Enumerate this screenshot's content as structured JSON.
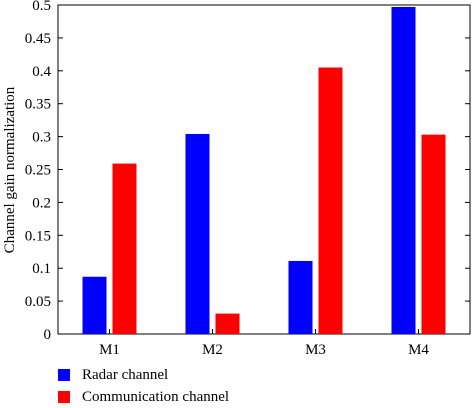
{
  "chart_data": {
    "type": "bar",
    "categories": [
      "M1",
      "M2",
      "M3",
      "M4"
    ],
    "series": [
      {
        "name": "Radar channel",
        "color": "#0000ff",
        "values": [
          0.087,
          0.304,
          0.111,
          0.497
        ]
      },
      {
        "name": "Communication channel",
        "color": "#ff0000",
        "values": [
          0.259,
          0.031,
          0.405,
          0.303
        ]
      }
    ],
    "ylabel": "Channel gain normalization",
    "ylim": [
      0,
      0.5
    ],
    "yticks": [
      "0",
      "0.05",
      "0.1",
      "0.15",
      "0.2",
      "0.25",
      "0.3",
      "0.35",
      "0.4",
      "0.45",
      "0.5"
    ],
    "legend_placement": "bottom-left",
    "grid": false
  }
}
